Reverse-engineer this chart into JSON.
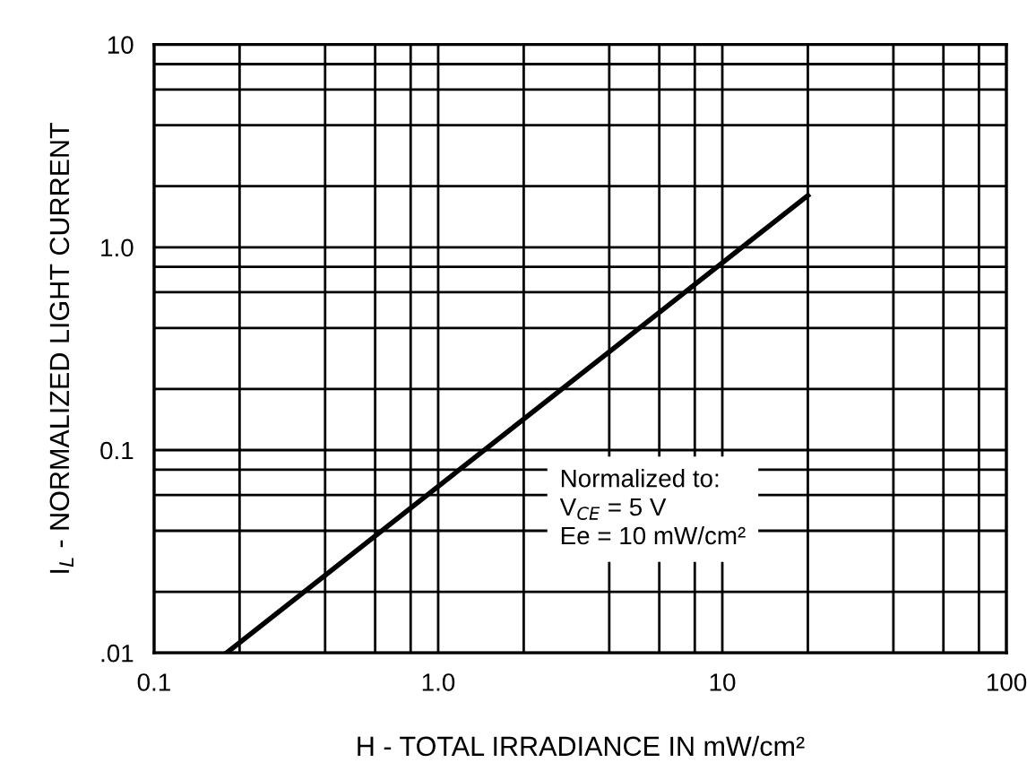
{
  "chart_data": {
    "type": "line",
    "xlabel": "H - TOTAL IRRADIANCE IN mW/cm²",
    "ylabel": "I$_{L}$ - NORMALIZED LIGHT CURRENT",
    "x": [
      0.18,
      20
    ],
    "series": [
      {
        "color": "#000000",
        "values": [
          0.01,
          1.8
        ]
      }
    ],
    "log": "xy",
    "xlim": [
      0.1,
      100
    ],
    "ylim": [
      0.01,
      10
    ],
    "xticks": [
      {
        "value": 0.1,
        "label": "0.1"
      },
      {
        "value": 0.2,
        "label": null
      },
      {
        "value": 0.4,
        "label": null
      },
      {
        "value": 0.6,
        "label": null
      },
      {
        "value": 0.8,
        "label": null
      },
      {
        "value": 1,
        "label": "1.0"
      },
      {
        "value": 2,
        "label": null
      },
      {
        "value": 4,
        "label": null
      },
      {
        "value": 6,
        "label": null
      },
      {
        "value": 8,
        "label": null
      },
      {
        "value": 10,
        "label": "10"
      },
      {
        "value": 20,
        "label": null
      },
      {
        "value": 40,
        "label": null
      },
      {
        "value": 60,
        "label": null
      },
      {
        "value": 80,
        "label": null
      },
      {
        "value": 100,
        "label": "100"
      }
    ],
    "yticks": [
      {
        "value": 0.01,
        "label": ".01"
      },
      {
        "value": 0.02,
        "label": null
      },
      {
        "value": 0.04,
        "label": null
      },
      {
        "value": 0.06,
        "label": null
      },
      {
        "value": 0.08,
        "label": null
      },
      {
        "value": 0.1,
        "label": "0.1"
      },
      {
        "value": 0.2,
        "label": null
      },
      {
        "value": 0.4,
        "label": null
      },
      {
        "value": 0.6,
        "label": null
      },
      {
        "value": 0.8,
        "label": null
      },
      {
        "value": 1,
        "label": "1.0"
      },
      {
        "value": 2,
        "label": null
      },
      {
        "value": 4,
        "label": null
      },
      {
        "value": 6,
        "label": null
      },
      {
        "value": 8,
        "label": null
      },
      {
        "value": 10,
        "label": "10"
      }
    ],
    "grid": true,
    "line_style": "solid",
    "annotations": [
      "Normalized to:\nV$_{CE}$ = 5 V\nEe = 10 mW/cm²"
    ]
  }
}
